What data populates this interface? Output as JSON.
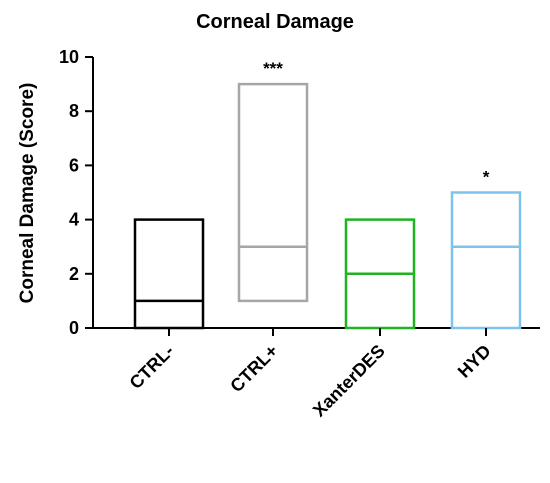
{
  "chart_data": {
    "type": "box",
    "title": "Corneal Damage",
    "ylabel": "Corneal Damage (Score)",
    "xlabel": "",
    "ylim": [
      0,
      10
    ],
    "yticks": [
      "0",
      "2",
      "4",
      "6",
      "8",
      "10"
    ],
    "categories": [
      "CTRL-",
      "CTRL+",
      "XanterDES",
      "HYD"
    ],
    "boxes": [
      {
        "category": "CTRL-",
        "min": 0,
        "median": 1,
        "max": 4,
        "significance": "",
        "color": "#000000"
      },
      {
        "category": "CTRL+",
        "min": 1,
        "median": 3,
        "max": 9,
        "significance": "***",
        "color": "#a6a6a6"
      },
      {
        "category": "XanterDES",
        "min": 0,
        "median": 2,
        "max": 4,
        "significance": "",
        "color": "#1fb31f"
      },
      {
        "category": "HYD",
        "min": 0,
        "median": 3,
        "max": 5,
        "significance": "*",
        "color": "#7cc4ee"
      }
    ],
    "grid": false,
    "legend": "none"
  }
}
